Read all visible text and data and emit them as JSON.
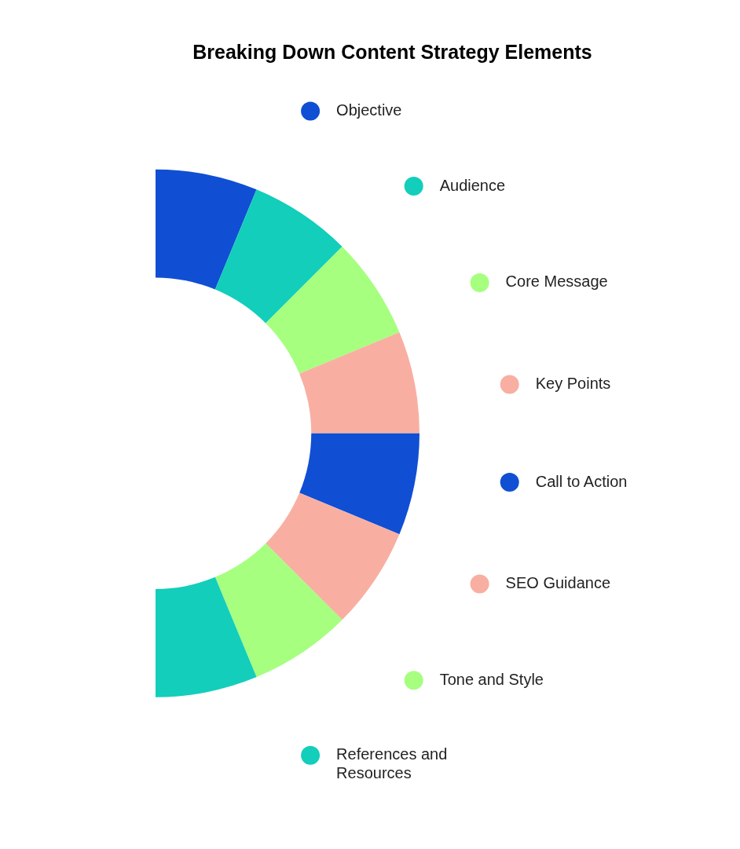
{
  "chart_data": {
    "type": "donut",
    "title": "Breaking Down Content Strategy Elements",
    "categories": [
      "Objective",
      "Audience",
      "Core Message",
      "Key Points",
      "Call to Action",
      "SEO Guidance",
      "Tone and Style",
      "References and Resources"
    ],
    "values": [
      12.5,
      12.5,
      12.5,
      12.5,
      12.5,
      12.5,
      12.5,
      12.5
    ],
    "colors": [
      "#104fd3",
      "#12cebb",
      "#a6ff7f",
      "#f8afa2",
      "#104fd3",
      "#f8afa2",
      "#a6ff7f",
      "#12cebb"
    ],
    "legend": "right"
  }
}
